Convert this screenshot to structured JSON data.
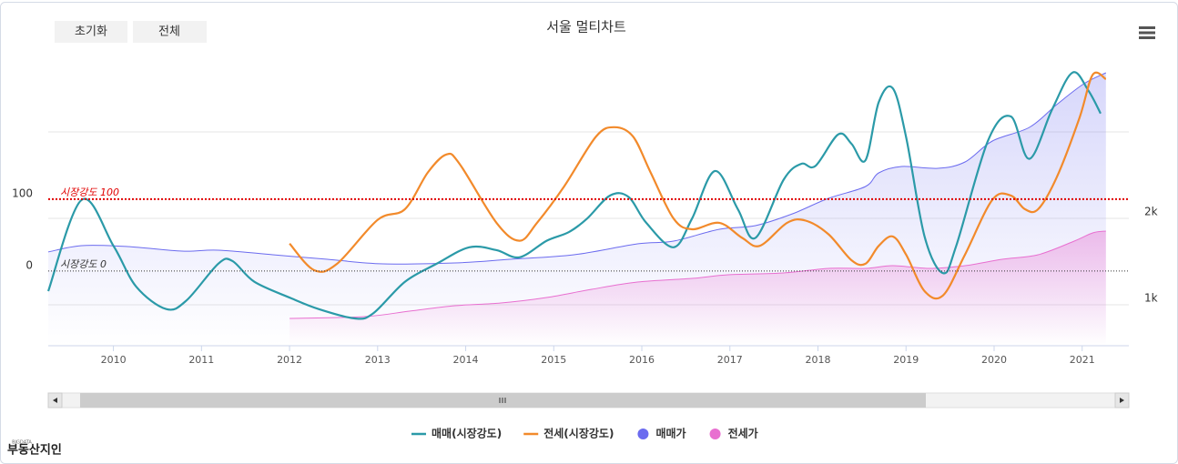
{
  "chart_data": {
    "type": "line",
    "title": "서울 멀티차트",
    "buttons": [
      "초기화",
      "전체"
    ],
    "logo": {
      "small": "BIGDATA",
      "text": "부동산지인"
    },
    "xlim": [
      2009.26,
      2021.53
    ],
    "xticks": [
      2010,
      2011,
      2012,
      2013,
      2014,
      2015,
      2016,
      2017,
      2018,
      2019,
      2020,
      2021
    ],
    "ylim": [
      -104,
      320
    ],
    "yticks": [
      0,
      100
    ],
    "y2lim": [
      526,
      4053
    ],
    "y2ticks": [
      {
        "value": 1000,
        "label": "1k"
      },
      {
        "value": 2000,
        "label": "2k"
      }
    ],
    "plot_lines": [
      {
        "value": 100,
        "label": "시장강도 100",
        "color": "#e00000"
      },
      {
        "value": 0,
        "label": "시장강도 0",
        "color": "#333333"
      }
    ],
    "series": [
      {
        "name": "매매(시장강도)",
        "kind": "line",
        "color": "#2b9aa8",
        "x": [
          2009.26,
          2009.64,
          2010.0,
          2010.26,
          2010.6,
          2010.83,
          2011.19,
          2011.35,
          2011.6,
          2012.02,
          2012.33,
          2012.74,
          2012.95,
          2013.31,
          2013.67,
          2014.04,
          2014.35,
          2014.61,
          2014.92,
          2015.17,
          2015.38,
          2015.64,
          2015.85,
          2016.05,
          2016.36,
          2016.57,
          2016.83,
          2017.09,
          2017.29,
          2017.61,
          2017.81,
          2017.97,
          2018.23,
          2018.38,
          2018.54,
          2018.69,
          2018.85,
          2019.0,
          2019.21,
          2019.42,
          2019.57,
          2019.93,
          2020.19,
          2020.4,
          2020.66,
          2020.89,
          2021.07,
          2021.21
        ],
        "values": [
          -28,
          99,
          35,
          -22,
          -53,
          -41,
          10,
          14,
          -15,
          -38,
          -53,
          -66,
          -59,
          -15,
          10,
          33,
          29,
          19,
          42,
          54,
          73,
          105,
          103,
          67,
          33,
          73,
          139,
          86,
          46,
          127,
          149,
          146,
          190,
          177,
          154,
          235,
          254,
          187,
          48,
          -3,
          35,
          181,
          215,
          156,
          225,
          276,
          251,
          219
        ]
      },
      {
        "name": "전세(시장강도)",
        "kind": "line",
        "color": "#f28a2b",
        "x": [
          2012.0,
          2012.28,
          2012.54,
          2013.0,
          2013.31,
          2013.57,
          2013.78,
          2013.93,
          2014.35,
          2014.61,
          2014.81,
          2015.12,
          2015.48,
          2015.69,
          2015.9,
          2016.1,
          2016.36,
          2016.57,
          2016.88,
          2017.14,
          2017.34,
          2017.65,
          2017.86,
          2018.12,
          2018.38,
          2018.54,
          2018.69,
          2018.85,
          2019.0,
          2019.21,
          2019.42,
          2019.67,
          2019.98,
          2020.19,
          2020.35,
          2020.5,
          2020.71,
          2020.97,
          2021.12,
          2021.27
        ],
        "values": [
          38,
          1,
          10,
          71,
          86,
          137,
          162,
          149,
          67,
          42,
          67,
          118,
          187,
          200,
          187,
          137,
          73,
          58,
          67,
          46,
          35,
          67,
          70,
          51,
          15,
          10,
          35,
          48,
          23,
          -28,
          -34,
          23,
          99,
          105,
          86,
          86,
          130,
          213,
          273,
          267
        ]
      },
      {
        "name": "매매가",
        "kind": "area",
        "axis": "y2",
        "color": "#6b6bef",
        "x": [
          2009.26,
          2009.64,
          2010.16,
          2010.78,
          2011.19,
          2011.81,
          2012.43,
          2013.06,
          2013.88,
          2014.5,
          2015.23,
          2015.95,
          2016.36,
          2016.88,
          2017.29,
          2017.71,
          2018.12,
          2018.54,
          2018.69,
          2018.95,
          2019.36,
          2019.67,
          2019.98,
          2020.4,
          2020.71,
          2021.02,
          2021.27
        ],
        "values": [
          1611,
          1684,
          1674,
          1621,
          1632,
          1579,
          1526,
          1474,
          1484,
          1526,
          1579,
          1705,
          1737,
          1874,
          1916,
          2053,
          2232,
          2368,
          2526,
          2600,
          2579,
          2653,
          2895,
          3053,
          3316,
          3558,
          3684
        ]
      },
      {
        "name": "전세가",
        "kind": "area",
        "axis": "y2",
        "color": "#e86fd0",
        "x": [
          2012.0,
          2012.85,
          2013.36,
          2013.88,
          2014.4,
          2014.92,
          2015.43,
          2015.95,
          2016.57,
          2016.98,
          2017.61,
          2018.12,
          2018.54,
          2018.85,
          2019.26,
          2019.67,
          2020.09,
          2020.5,
          2020.91,
          2021.12,
          2021.27
        ],
        "values": [
          842,
          863,
          926,
          989,
          1021,
          1084,
          1179,
          1263,
          1305,
          1347,
          1368,
          1421,
          1421,
          1453,
          1421,
          1453,
          1526,
          1579,
          1737,
          1832,
          1853
        ]
      }
    ]
  }
}
